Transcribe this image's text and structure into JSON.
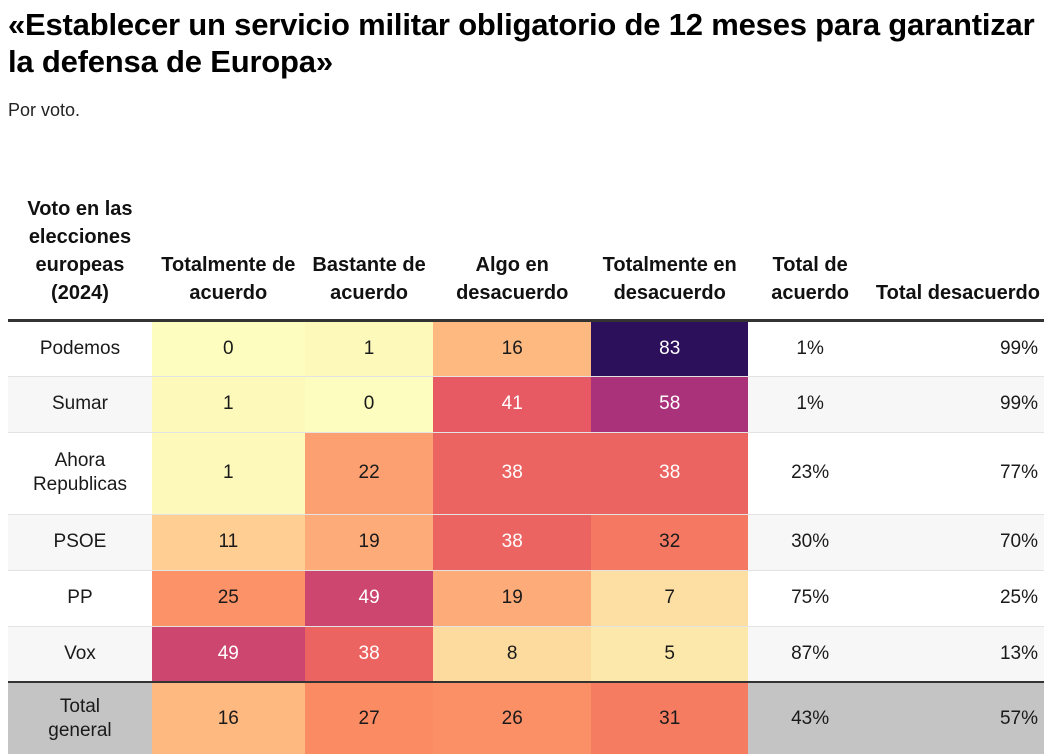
{
  "header": {
    "title": "«Establecer un servicio militar obligatorio de 12 meses para garantizar la defensa de Europa»",
    "subtitle": "Por voto."
  },
  "chart_data": {
    "type": "heatmap",
    "title": "«Establecer un servicio militar obligatorio de 12 meses para garantizar la defensa de Europa»",
    "subtitle": "Por voto.",
    "row_header": "Voto en las elecciones europeas (2024)",
    "columns": [
      "Totalmente de acuerdo",
      "Bastante de acuerdo",
      "Algo en desacuerdo",
      "Totalmente en desacuerdo",
      "Total de acuerdo",
      "Total desacuerdo"
    ],
    "rows": [
      {
        "label": "Podemos",
        "values": [
          0,
          1,
          16,
          83
        ],
        "total_acuerdo": "1%",
        "total_desacuerdo": "99%"
      },
      {
        "label": "Sumar",
        "values": [
          1,
          0,
          41,
          58
        ],
        "total_acuerdo": "1%",
        "total_desacuerdo": "99%"
      },
      {
        "label": "Ahora Republicas",
        "values": [
          1,
          22,
          38,
          38
        ],
        "total_acuerdo": "23%",
        "total_desacuerdo": "77%"
      },
      {
        "label": "PSOE",
        "values": [
          11,
          19,
          38,
          32
        ],
        "total_acuerdo": "30%",
        "total_desacuerdo": "70%"
      },
      {
        "label": "PP",
        "values": [
          25,
          49,
          19,
          7
        ],
        "total_acuerdo": "75%",
        "total_desacuerdo": "25%"
      },
      {
        "label": "Vox",
        "values": [
          49,
          38,
          8,
          5
        ],
        "total_acuerdo": "87%",
        "total_desacuerdo": "13%"
      },
      {
        "label": "Total general",
        "values": [
          16,
          27,
          26,
          31
        ],
        "total_acuerdo": "43%",
        "total_desacuerdo": "57%"
      }
    ],
    "color_scale": {
      "name": "magma-reversed",
      "domain": [
        0,
        83
      ],
      "stops": [
        "#fcfdbf",
        "#fec287",
        "#fb8861",
        "#e75863",
        "#b73779",
        "#721f81",
        "#2c105c"
      ]
    }
  }
}
